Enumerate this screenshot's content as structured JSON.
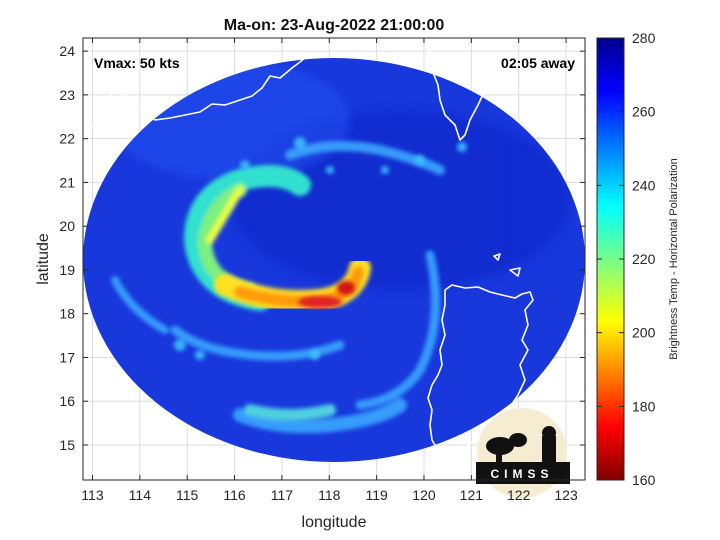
{
  "title": "Ma-on: 23-Aug-2022 21:00:00",
  "annotations": {
    "vmax": "Vmax: 50 kts",
    "time_away": "02:05 away"
  },
  "axes": {
    "xlabel": "longitude",
    "ylabel": "latitude",
    "xlim": [
      112.8,
      123.4
    ],
    "ylim": [
      14.2,
      24.3
    ],
    "xticks": [
      "113",
      "114",
      "115",
      "116",
      "117",
      "118",
      "119",
      "120",
      "121",
      "122",
      "123"
    ],
    "yticks": [
      "15",
      "16",
      "17",
      "18",
      "19",
      "20",
      "21",
      "22",
      "23",
      "24"
    ]
  },
  "colorbar": {
    "label": "Brightness Temp - Horizontal Polarization",
    "range": [
      160,
      280
    ],
    "ticks": [
      "160",
      "180",
      "200",
      "220",
      "240",
      "260",
      "280"
    ],
    "colormap": "jet"
  },
  "logo": {
    "text": "CIMSS"
  },
  "colors": {
    "swath_background": "#1838d8",
    "coastline": "#ffffff",
    "eye_core": "#d01818"
  }
}
